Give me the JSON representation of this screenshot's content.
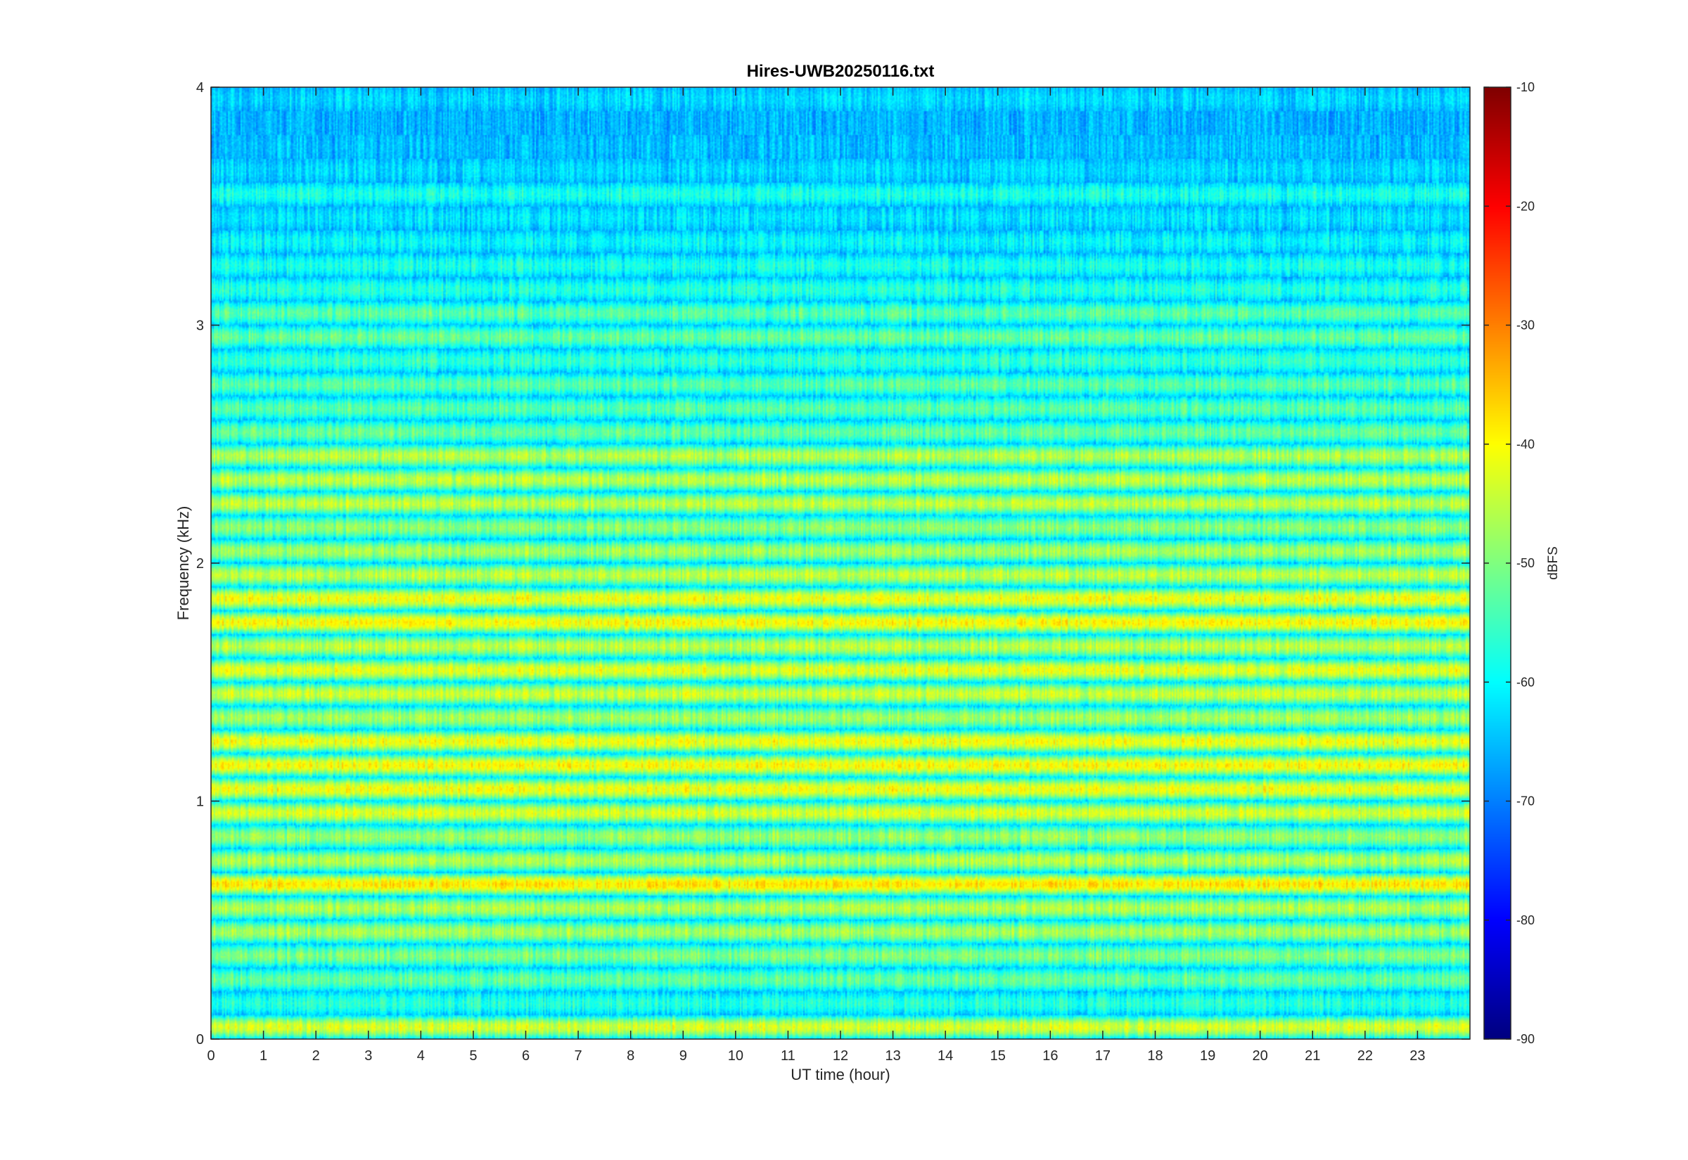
{
  "chart_data": {
    "type": "heatmap",
    "title": "Hires-UWB20250116.txt",
    "xlabel": "UT time (hour)",
    "ylabel": "Frequency (kHz)",
    "xlim": [
      0,
      24
    ],
    "ylim": [
      0,
      4
    ],
    "x_ticks": [
      "0",
      "1",
      "2",
      "3",
      "4",
      "5",
      "6",
      "7",
      "8",
      "9",
      "10",
      "11",
      "12",
      "13",
      "14",
      "15",
      "16",
      "17",
      "18",
      "19",
      "20",
      "21",
      "22",
      "23"
    ],
    "y_ticks": [
      "0",
      "1",
      "2",
      "3",
      "4"
    ],
    "colorbar": {
      "label": "dBFS",
      "range": [
        -90,
        -10
      ],
      "ticks": [
        "-90",
        "-80",
        "-70",
        "-60",
        "-50",
        "-40",
        "-30",
        "-20",
        "-10"
      ],
      "colormap": "jet"
    },
    "band_spacing_khz": 0.1,
    "bands": [
      {
        "freq_khz": 0.05,
        "level_dbfs": -43
      },
      {
        "freq_khz": 0.15,
        "level_dbfs": -57
      },
      {
        "freq_khz": 0.25,
        "level_dbfs": -52
      },
      {
        "freq_khz": 0.35,
        "level_dbfs": -50
      },
      {
        "freq_khz": 0.45,
        "level_dbfs": -47
      },
      {
        "freq_khz": 0.55,
        "level_dbfs": -46
      },
      {
        "freq_khz": 0.65,
        "level_dbfs": -38
      },
      {
        "freq_khz": 0.75,
        "level_dbfs": -46
      },
      {
        "freq_khz": 0.85,
        "level_dbfs": -48
      },
      {
        "freq_khz": 0.95,
        "level_dbfs": -43
      },
      {
        "freq_khz": 1.05,
        "level_dbfs": -41
      },
      {
        "freq_khz": 1.15,
        "level_dbfs": -40
      },
      {
        "freq_khz": 1.25,
        "level_dbfs": -41
      },
      {
        "freq_khz": 1.35,
        "level_dbfs": -47
      },
      {
        "freq_khz": 1.45,
        "level_dbfs": -44
      },
      {
        "freq_khz": 1.55,
        "level_dbfs": -42
      },
      {
        "freq_khz": 1.65,
        "level_dbfs": -45
      },
      {
        "freq_khz": 1.75,
        "level_dbfs": -40
      },
      {
        "freq_khz": 1.85,
        "level_dbfs": -41
      },
      {
        "freq_khz": 1.95,
        "level_dbfs": -45
      },
      {
        "freq_khz": 2.05,
        "level_dbfs": -47
      },
      {
        "freq_khz": 2.15,
        "level_dbfs": -49
      },
      {
        "freq_khz": 2.25,
        "level_dbfs": -45
      },
      {
        "freq_khz": 2.35,
        "level_dbfs": -45
      },
      {
        "freq_khz": 2.45,
        "level_dbfs": -46
      },
      {
        "freq_khz": 2.55,
        "level_dbfs": -52
      },
      {
        "freq_khz": 2.65,
        "level_dbfs": -53
      },
      {
        "freq_khz": 2.75,
        "level_dbfs": -53
      },
      {
        "freq_khz": 2.85,
        "level_dbfs": -56
      },
      {
        "freq_khz": 2.95,
        "level_dbfs": -52
      },
      {
        "freq_khz": 3.05,
        "level_dbfs": -53
      },
      {
        "freq_khz": 3.15,
        "level_dbfs": -57
      },
      {
        "freq_khz": 3.25,
        "level_dbfs": -58
      },
      {
        "freq_khz": 3.35,
        "level_dbfs": -60
      },
      {
        "freq_khz": 3.45,
        "level_dbfs": -62
      },
      {
        "freq_khz": 3.55,
        "level_dbfs": -58
      },
      {
        "freq_khz": 3.65,
        "level_dbfs": -63
      },
      {
        "freq_khz": 3.75,
        "level_dbfs": -65
      },
      {
        "freq_khz": 3.85,
        "level_dbfs": -66
      },
      {
        "freq_khz": 3.95,
        "level_dbfs": -63
      }
    ]
  }
}
